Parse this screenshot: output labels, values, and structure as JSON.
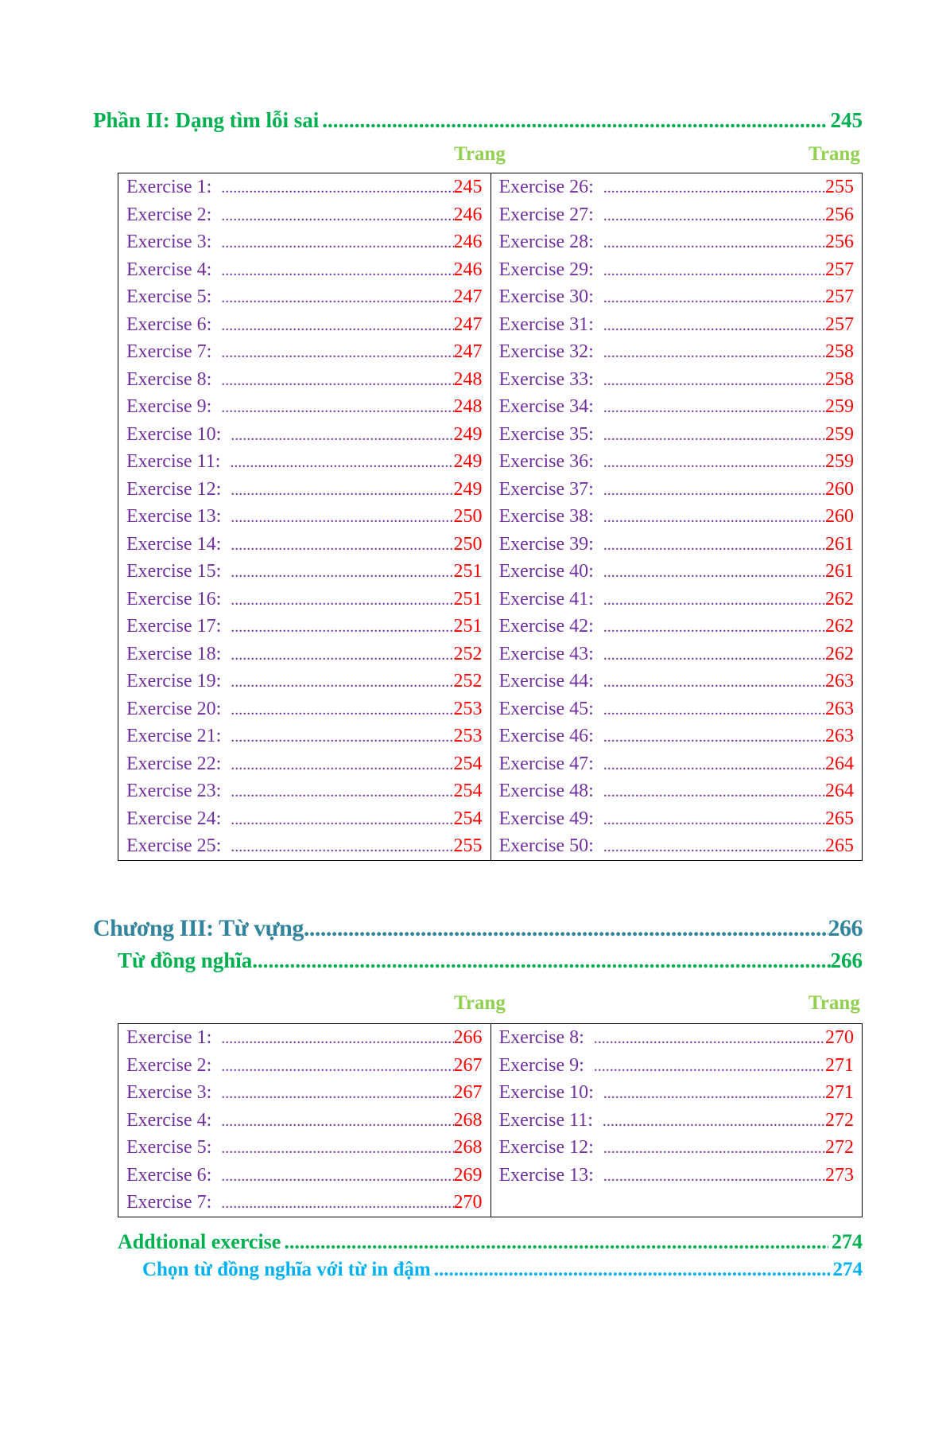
{
  "part2": {
    "title": "Phần II: Dạng tìm lỗi sai",
    "page": "245"
  },
  "page_header": "Trang",
  "table1": {
    "left": [
      [
        "Exercise 1:",
        "245"
      ],
      [
        "Exercise 2:",
        "246"
      ],
      [
        "Exercise 3:",
        "246"
      ],
      [
        "Exercise 4:",
        "246"
      ],
      [
        "Exercise 5:",
        "247"
      ],
      [
        "Exercise 6:",
        "247"
      ],
      [
        "Exercise 7:",
        "247"
      ],
      [
        "Exercise 8:",
        "248"
      ],
      [
        "Exercise 9:",
        "248"
      ],
      [
        "Exercise 10:",
        "249"
      ],
      [
        "Exercise 11:",
        "249"
      ],
      [
        "Exercise 12:",
        "249"
      ],
      [
        "Exercise 13:",
        "250"
      ],
      [
        "Exercise 14:",
        "250"
      ],
      [
        "Exercise 15:",
        "251"
      ],
      [
        "Exercise 16:",
        "251"
      ],
      [
        "Exercise 17:",
        "251"
      ],
      [
        "Exercise 18:",
        "252"
      ],
      [
        "Exercise 19:",
        "252"
      ],
      [
        "Exercise 20:",
        "253"
      ],
      [
        "Exercise 21:",
        "253"
      ],
      [
        "Exercise 22:",
        "254"
      ],
      [
        "Exercise 23:",
        "254"
      ],
      [
        "Exercise 24:",
        "254"
      ],
      [
        "Exercise 25:",
        "255"
      ]
    ],
    "right": [
      [
        "Exercise 26:",
        "255"
      ],
      [
        "Exercise 27:",
        "256"
      ],
      [
        "Exercise 28:",
        "256"
      ],
      [
        "Exercise 29:",
        "257"
      ],
      [
        "Exercise 30:",
        "257"
      ],
      [
        "Exercise 31:",
        "257"
      ],
      [
        "Exercise 32:",
        "258"
      ],
      [
        "Exercise 33:",
        "258"
      ],
      [
        "Exercise 34:",
        "259"
      ],
      [
        "Exercise 35:",
        "259"
      ],
      [
        "Exercise 36:",
        "259"
      ],
      [
        "Exercise 37:",
        "260"
      ],
      [
        "Exercise 38:",
        "260"
      ],
      [
        "Exercise 39:",
        "261"
      ],
      [
        "Exercise 40:",
        "261"
      ],
      [
        "Exercise 41:",
        "262"
      ],
      [
        "Exercise 42:",
        "262"
      ],
      [
        "Exercise 43:",
        "262"
      ],
      [
        "Exercise 44:",
        "263"
      ],
      [
        "Exercise 45:",
        "263"
      ],
      [
        "Exercise 46:",
        "263"
      ],
      [
        "Exercise 47:",
        "264"
      ],
      [
        "Exercise 48:",
        "264"
      ],
      [
        "Exercise 49:",
        "265"
      ],
      [
        "Exercise 50:",
        "265"
      ]
    ]
  },
  "chapter3": {
    "title": "Chương III: Từ vựng",
    "page": "266"
  },
  "synonyms": {
    "title": "Từ đồng nghĩa",
    "page": "266"
  },
  "table2": {
    "left": [
      [
        "Exercise 1:",
        "266"
      ],
      [
        "Exercise 2:",
        "267"
      ],
      [
        "Exercise 3:",
        "267"
      ],
      [
        "Exercise 4:",
        "268"
      ],
      [
        "Exercise 5:",
        "268"
      ],
      [
        "Exercise 6:",
        "269"
      ],
      [
        "Exercise 7:",
        "270"
      ]
    ],
    "right": [
      [
        "Exercise 8:",
        "270"
      ],
      [
        "Exercise 9:",
        "271"
      ],
      [
        "Exercise 10:",
        "271"
      ],
      [
        "Exercise 11:",
        "272"
      ],
      [
        "Exercise 12:",
        "272"
      ],
      [
        "Exercise 13:",
        "273"
      ]
    ]
  },
  "additional": {
    "title": "Addtional exercise",
    "page": "274"
  },
  "choose_synonym": {
    "title": "Chọn từ đồng nghĩa với từ in đậm",
    "page": "274"
  },
  "colors": {
    "green": "#00b050",
    "light_green": "#92d050",
    "teal": "#31849b",
    "cyan": "#00b0f0",
    "purple": "#7030a0",
    "red": "#ff0000"
  }
}
